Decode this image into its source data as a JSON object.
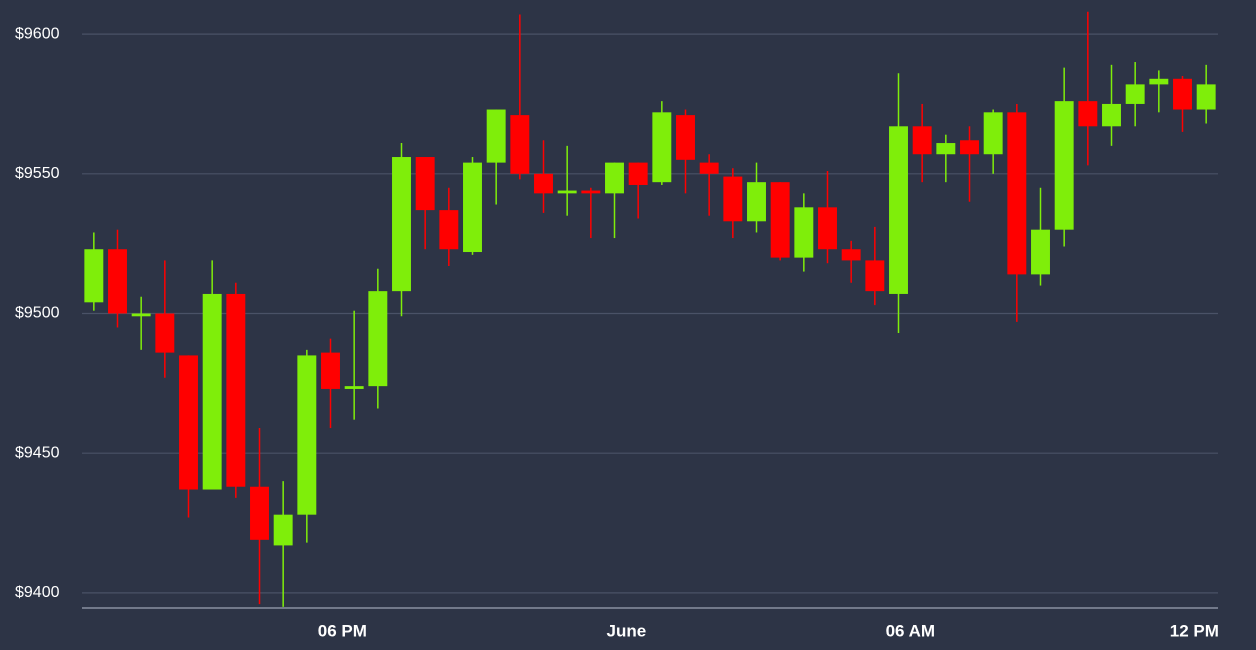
{
  "chart_data": {
    "type": "candlestick",
    "x": [
      12.75,
      13.25,
      13.75,
      14.25,
      14.75,
      15.25,
      15.75,
      16.25,
      16.75,
      17.25,
      17.75,
      18.25,
      18.75,
      19.25,
      19.75,
      20.25,
      20.75,
      21.25,
      21.75,
      22.25,
      22.75,
      23.25,
      23.75,
      24.25,
      24.75,
      25.25,
      25.75,
      26.25,
      26.75,
      27.25,
      27.75,
      28.25,
      28.75,
      29.25,
      29.75,
      30.25,
      30.75,
      31.25,
      31.75,
      32.25,
      32.75,
      33.25,
      33.75,
      34.25,
      34.75,
      35.25,
      35.75,
      36.25
    ],
    "open": [
      9504,
      9523,
      9499,
      9500,
      9485,
      9437,
      9507,
      9438,
      9417,
      9428,
      9486,
      9473,
      9474,
      9508,
      9556,
      9537,
      9522,
      9554,
      9571,
      9550,
      9543,
      9544,
      9543,
      9554,
      9547,
      9571,
      9554,
      9549,
      9533,
      9547,
      9520,
      9538,
      9523,
      9519,
      9507,
      9567,
      9557,
      9562,
      9557,
      9572,
      9514,
      9530,
      9576,
      9567,
      9575,
      9582,
      9584,
      9573
    ],
    "high": [
      9529,
      9530,
      9506,
      9519,
      9485,
      9519,
      9511,
      9459,
      9440,
      9487,
      9491,
      9501,
      9516,
      9561,
      9556,
      9545,
      9556,
      9573,
      9607,
      9562,
      9560,
      9545,
      9554,
      9554,
      9576,
      9573,
      9557,
      9552,
      9554,
      9547,
      9543,
      9551,
      9526,
      9531,
      9586,
      9575,
      9564,
      9567,
      9573,
      9575,
      9545,
      9588,
      9608,
      9589,
      9590,
      9587,
      9585,
      9589
    ],
    "low": [
      9501,
      9495,
      9487,
      9477,
      9427,
      9437,
      9434,
      9396,
      9395,
      9418,
      9459,
      9462,
      9466,
      9499,
      9523,
      9517,
      9521,
      9539,
      9548,
      9536,
      9535,
      9527,
      9527,
      9534,
      9546,
      9543,
      9535,
      9527,
      9529,
      9519,
      9515,
      9518,
      9511,
      9503,
      9493,
      9547,
      9547,
      9540,
      9550,
      9497,
      9510,
      9524,
      9553,
      9560,
      9567,
      9572,
      9565,
      9568
    ],
    "close": [
      9523,
      9500,
      9500,
      9486,
      9437,
      9507,
      9438,
      9419,
      9428,
      9485,
      9473,
      9474,
      9508,
      9556,
      9537,
      9523,
      9554,
      9573,
      9550,
      9543,
      9544,
      9543,
      9554,
      9546,
      9572,
      9555,
      9550,
      9533,
      9547,
      9520,
      9538,
      9523,
      9519,
      9508,
      9567,
      9557,
      9561,
      9557,
      9572,
      9514,
      9530,
      9576,
      9567,
      9575,
      9582,
      9584,
      9573,
      9582
    ],
    "up_color": "#7fee0a",
    "down_color": "#ff0000",
    "xlim": [
      12.5,
      36.5
    ],
    "xticks": [
      {
        "value": 18,
        "label": "06 PM"
      },
      {
        "value": 24,
        "label": "June"
      },
      {
        "value": 30,
        "label": "06 AM"
      },
      {
        "value": 36,
        "label": "12 PM"
      }
    ],
    "ylim": [
      9394.6,
      9612.2
    ],
    "yticks": [
      {
        "value": 9400,
        "label": "$9400"
      },
      {
        "value": 9450,
        "label": "$9450"
      },
      {
        "value": 9500,
        "label": "$9500"
      },
      {
        "value": 9550,
        "label": "$9550"
      },
      {
        "value": 9600,
        "label": "$9600"
      }
    ],
    "grid": true
  }
}
